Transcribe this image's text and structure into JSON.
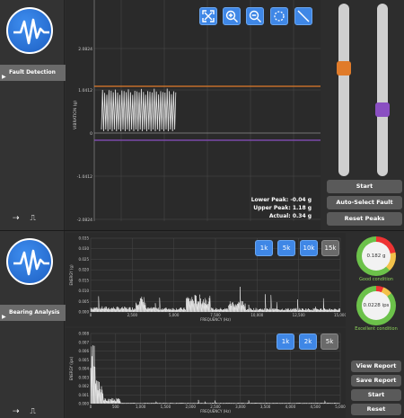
{
  "fault": {
    "nav_label": "Fault Detection",
    "y_axis_label": "VIBRATION (g)",
    "y_ticks": [
      "2.0824",
      "1.0412",
      "0",
      "-1.0412",
      "-2.0824"
    ],
    "lower_peak_label": "Lower Peak:",
    "lower_peak_value": "-0.04 g",
    "upper_peak_label": "Upper Peak:",
    "upper_peak_value": "1.18 g",
    "actual_label": "Actual:",
    "actual_value": "0.34 g",
    "buttons": {
      "start": "Start",
      "auto_select": "Auto-Select Fault Limits",
      "reset_peaks": "Reset Peaks"
    },
    "upper_limit_color": "#e07b2a",
    "lower_limit_color": "#8a4fc2",
    "upper_limit_value": 1.18,
    "lower_limit_value": -0.15
  },
  "bearing": {
    "nav_label": "Bearing Analysis",
    "top_chart": {
      "y_label": "ENERGY (g)",
      "x_label": "FREQUENCY (Hz)",
      "y_ticks": [
        "0.035",
        "0.030",
        "0.025",
        "0.020",
        "0.015",
        "0.010",
        "0.005",
        "0.000"
      ],
      "x_ticks": [
        "0",
        "2,500",
        "5,000",
        "7,500",
        "10,000",
        "12,500",
        "15,000"
      ],
      "range_buttons": [
        "1k",
        "5k",
        "10k",
        "15k"
      ]
    },
    "bottom_chart": {
      "y_label": "ENERGY (ips)",
      "x_label": "FREQUENCY (Hz)",
      "y_ticks": [
        "0.008",
        "0.007",
        "0.006",
        "0.005",
        "0.004",
        "0.003",
        "0.002",
        "0.001",
        "0.000"
      ],
      "x_ticks": [
        "0",
        "500",
        "1,000",
        "1,500",
        "2,000",
        "2,500",
        "3,000",
        "3,500",
        "4,000",
        "4,500",
        "5,000"
      ],
      "range_buttons": [
        "1k",
        "2k",
        "5k"
      ]
    },
    "gauge1": {
      "value": "0.182 g",
      "label": "Good condition"
    },
    "gauge2": {
      "value": "0.0228 ips",
      "label": "Excellent condition"
    },
    "buttons": {
      "view_report": "View Report",
      "save_report": "Save Report",
      "start": "Start",
      "reset": "Reset"
    }
  },
  "icons": [
    "logo-waveform-icon",
    "fit-view-icon",
    "zoom-in-icon",
    "zoom-out-icon",
    "select-region-icon",
    "draw-line-icon",
    "arrows-icon",
    "pulse-icon",
    "chevron-right-icon"
  ]
}
